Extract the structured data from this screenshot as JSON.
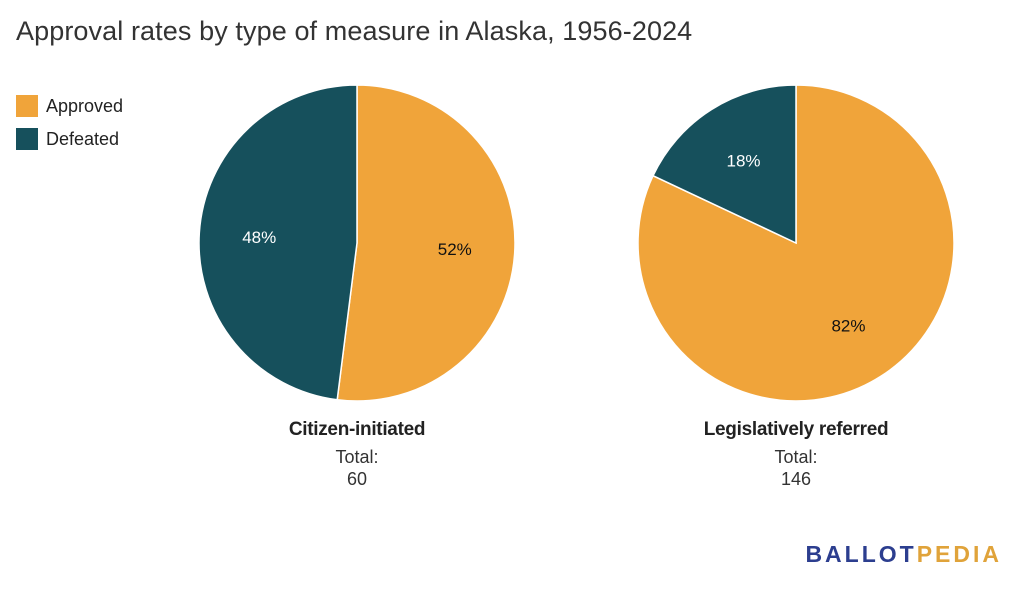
{
  "title": "Approval rates by type of measure in Alaska, 1956-2024",
  "legend": [
    {
      "label": "Approved",
      "color": "#f0a43a"
    },
    {
      "label": "Defeated",
      "color": "#16505c"
    }
  ],
  "chart_data": [
    {
      "type": "pie",
      "title": "Citizen-initiated",
      "total_label": "Total:",
      "total_value": "60",
      "slices": [
        {
          "name": "Approved",
          "value": 52,
          "label": "52%",
          "color": "#f0a43a",
          "label_color": "#111111"
        },
        {
          "name": "Defeated",
          "value": 48,
          "label": "48%",
          "color": "#16505c",
          "label_color": "#ffffff"
        }
      ]
    },
    {
      "type": "pie",
      "title": "Legislatively referred",
      "total_label": "Total:",
      "total_value": "146",
      "slices": [
        {
          "name": "Approved",
          "value": 82,
          "label": "82%",
          "color": "#f0a43a",
          "label_color": "#111111"
        },
        {
          "name": "Defeated",
          "value": 18,
          "label": "18%",
          "color": "#16505c",
          "label_color": "#ffffff"
        }
      ]
    }
  ],
  "logo": {
    "part1": "BALLOT",
    "part2": "PEDIA"
  }
}
